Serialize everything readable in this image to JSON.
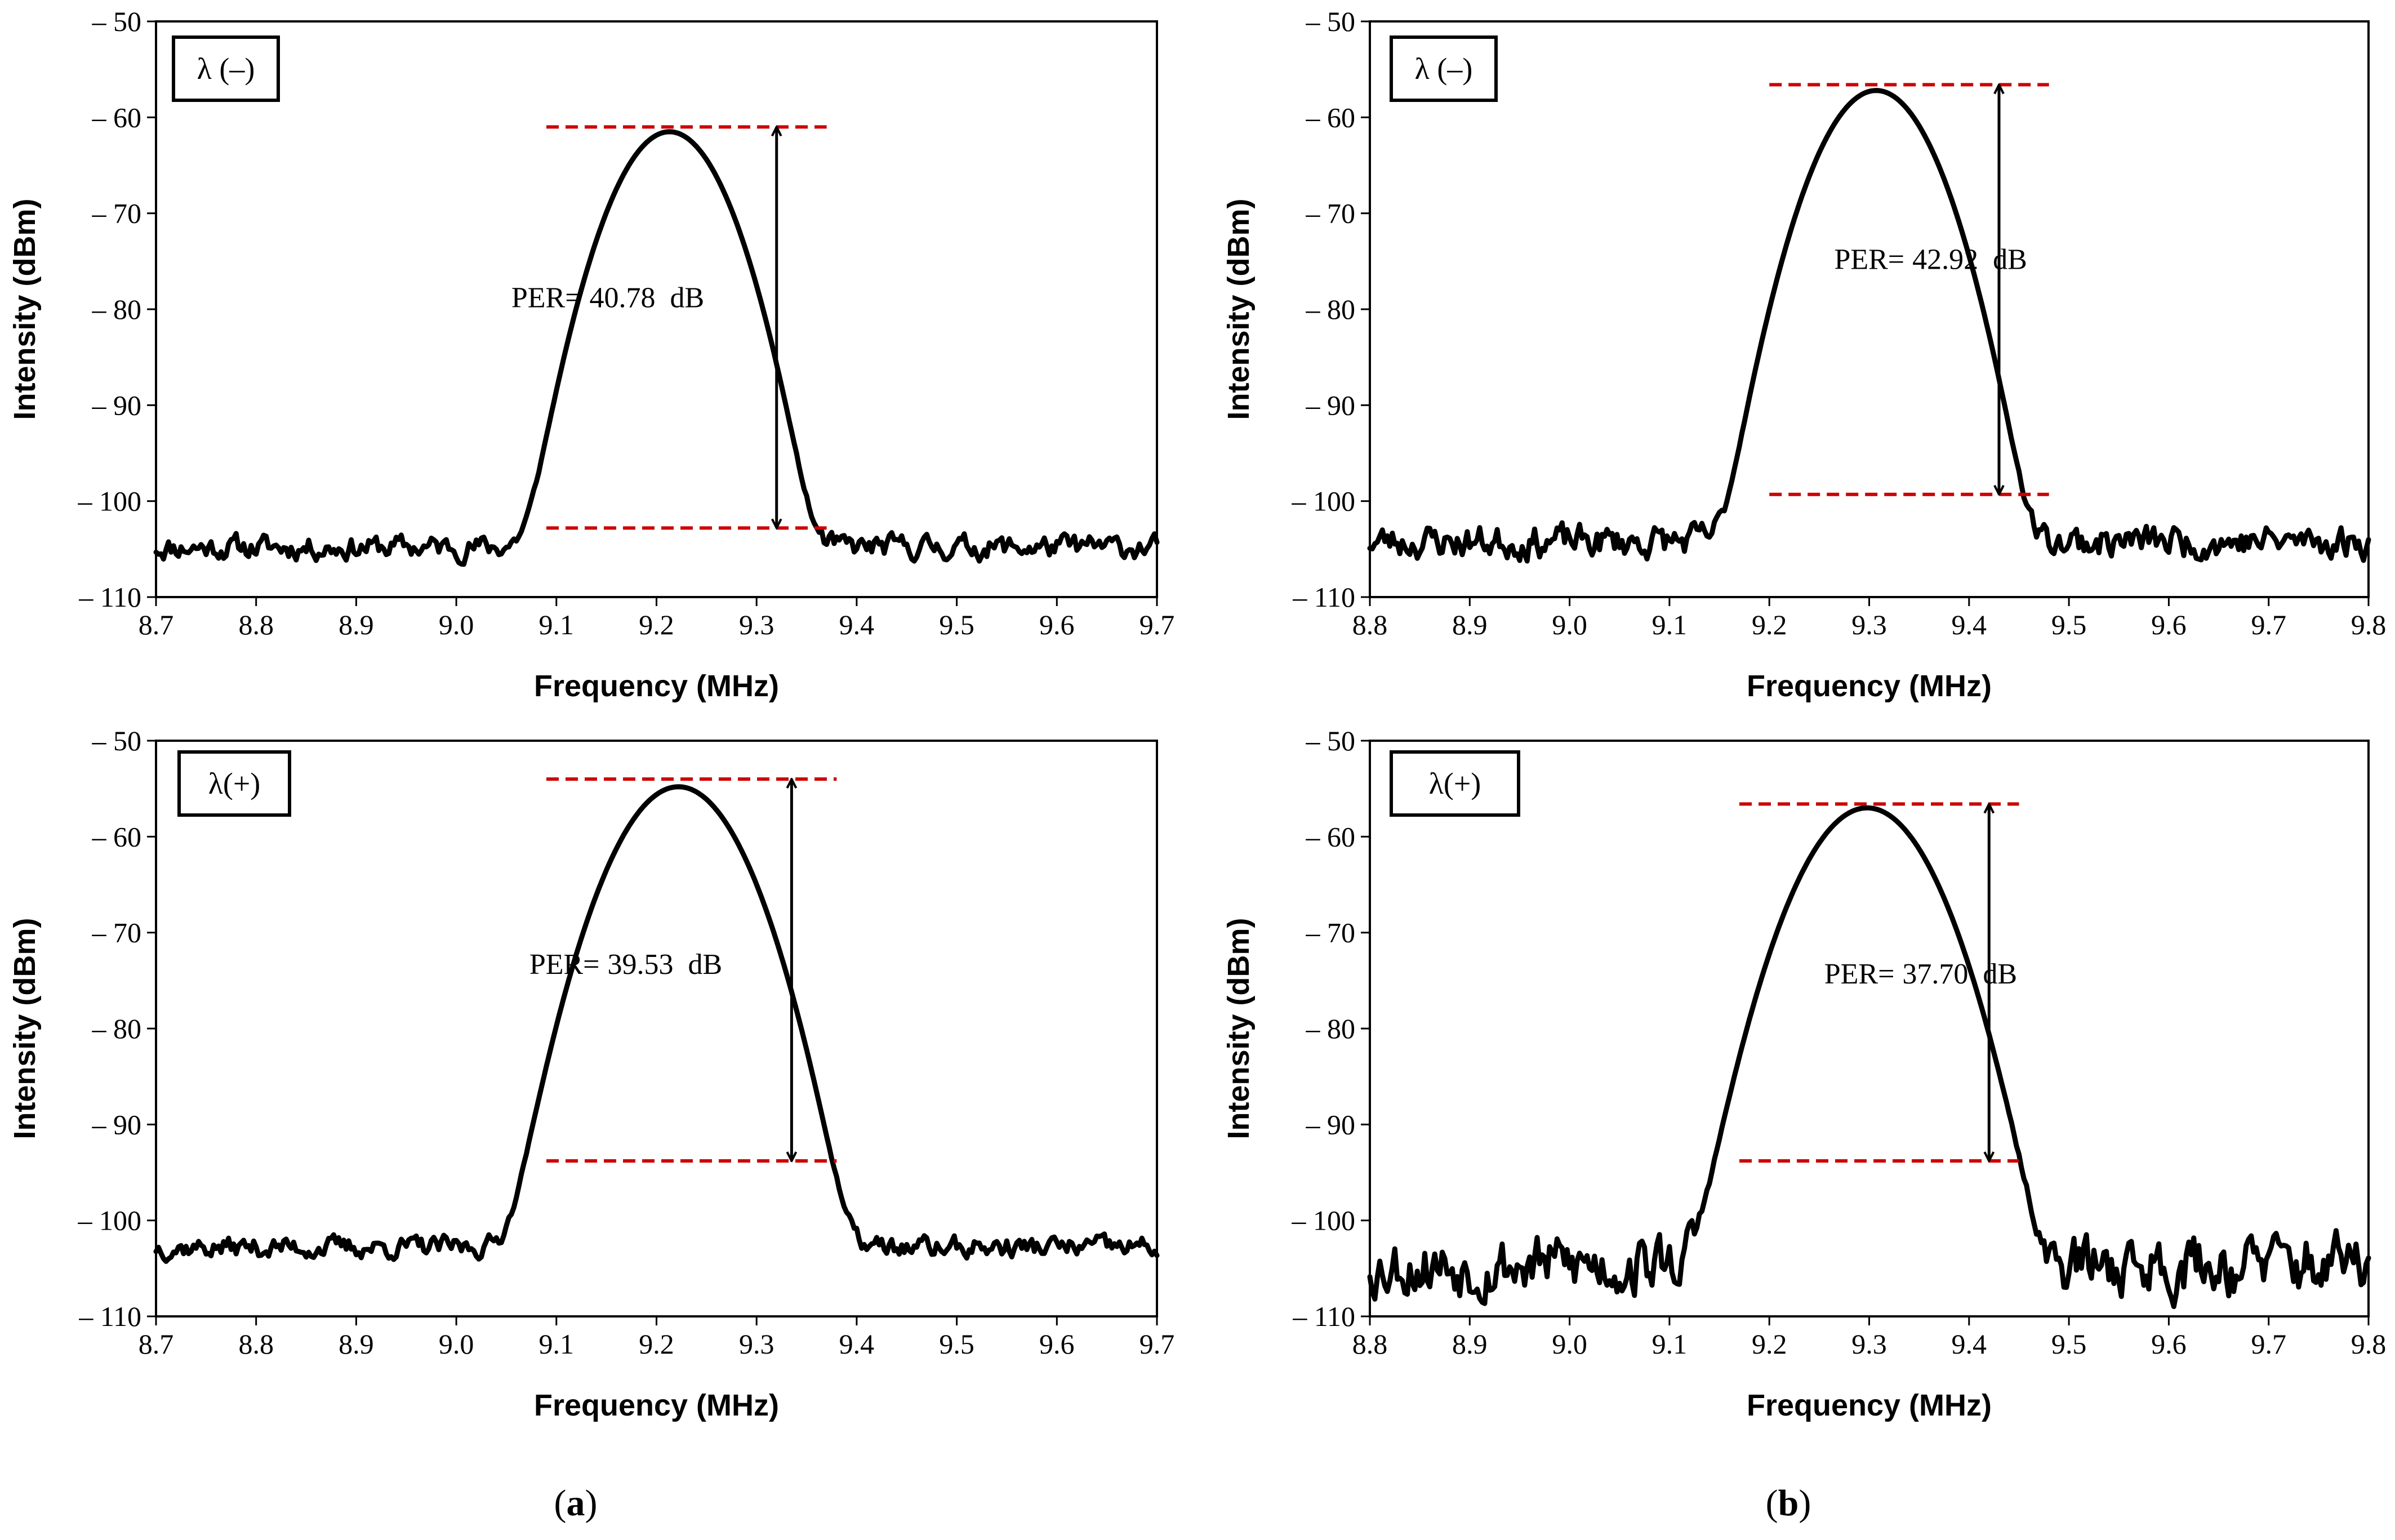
{
  "figure": {
    "captions": [
      {
        "open": "(",
        "letter": "a",
        "close": ")"
      },
      {
        "open": "(",
        "letter": "b",
        "close": ")"
      }
    ]
  },
  "colors": {
    "trace": "#000000",
    "reference_line": "#cc0000",
    "arrow": "#000000"
  },
  "chart_data": [
    {
      "type": "line",
      "panel": "top-left",
      "legend": "λ (–)",
      "xlabel": "Frequency (MHz)",
      "ylabel": "Intensity (dBm)",
      "xlim": [
        8.7,
        9.7
      ],
      "ylim": [
        -110,
        -50
      ],
      "xticks": [
        "8.7",
        "8.8",
        "8.9",
        "9.0",
        "9.1",
        "9.2",
        "9.3",
        "9.4",
        "9.5",
        "9.6",
        "9.7"
      ],
      "yticks": [
        "– 50",
        "– 60",
        "– 70",
        "– 80",
        "– 90",
        "– 100",
        "– 110"
      ],
      "peak": {
        "center": 9.213,
        "level": -61.5,
        "width": 0.032
      },
      "noise_floor": -104.8,
      "noise_amplitude": 1.0,
      "seed": 11,
      "reference_lines": {
        "top": -61,
        "bottom": -102.8,
        "x_range": [
          9.09,
          9.37
        ]
      },
      "arrow": {
        "x": 9.32,
        "from": -61,
        "to": -102.8
      },
      "annotation": {
        "label": "PER=",
        "value": "40.78",
        "unit": "dB",
        "x": 9.055,
        "y": -79.8
      }
    },
    {
      "type": "line",
      "panel": "top-right",
      "legend": "λ (–)",
      "xlabel": "Frequency (MHz)",
      "ylabel": "Intensity (dBm)",
      "xlim": [
        8.8,
        9.8
      ],
      "ylim": [
        -110,
        -50
      ],
      "xticks": [
        "8.8",
        "8.9",
        "9.0",
        "9.1",
        "9.2",
        "9.3",
        "9.4",
        "9.5",
        "9.6",
        "9.7",
        "9.8"
      ],
      "yticks": [
        "– 50",
        "– 60",
        "– 70",
        "– 80",
        "– 90",
        "– 100",
        "– 110"
      ],
      "peak": {
        "center": 9.307,
        "level": -57.2,
        "width": 0.033
      },
      "noise_floor": -104.2,
      "noise_amplitude": 1.4,
      "seed": 23,
      "reference_lines": {
        "top": -56.6,
        "bottom": -99.3,
        "x_range": [
          9.2,
          9.48
        ]
      },
      "arrow": {
        "x": 9.43,
        "from": -56.6,
        "to": -99.3
      },
      "annotation": {
        "label": "PER=",
        "value": "42.92",
        "unit": "dB",
        "x": 9.265,
        "y": -75.8
      }
    },
    {
      "type": "line",
      "panel": "bottom-left",
      "legend": "λ(+)",
      "xlabel": "Frequency (MHz)",
      "ylabel": "Intensity (dBm)",
      "xlim": [
        8.7,
        9.7
      ],
      "ylim": [
        -110,
        -50
      ],
      "xticks": [
        "8.7",
        "8.8",
        "8.9",
        "9.0",
        "9.1",
        "9.2",
        "9.3",
        "9.4",
        "9.5",
        "9.6",
        "9.7"
      ],
      "yticks": [
        "– 50",
        "– 60",
        "– 70",
        "– 80",
        "– 90",
        "– 100",
        "– 110"
      ],
      "peak": {
        "center": 9.222,
        "level": -54.8,
        "width": 0.036
      },
      "noise_floor": -102.8,
      "noise_amplitude": 0.9,
      "seed": 37,
      "reference_lines": {
        "top": -54,
        "bottom": -93.8,
        "x_range": [
          9.09,
          9.38
        ]
      },
      "arrow": {
        "x": 9.335,
        "from": -54,
        "to": -93.8
      },
      "annotation": {
        "label": "PER=",
        "value": "39.53",
        "unit": "dB",
        "x": 9.073,
        "y": -74.3
      }
    },
    {
      "type": "line",
      "panel": "bottom-right",
      "legend": "λ(+)",
      "xlabel": "Frequency (MHz)",
      "ylabel": "Intensity (dBm)",
      "xlim": [
        8.8,
        9.8
      ],
      "ylim": [
        -110,
        -50
      ],
      "xticks": [
        "8.8",
        "8.9",
        "9.0",
        "9.1",
        "9.2",
        "9.3",
        "9.4",
        "9.5",
        "9.6",
        "9.7",
        "9.8"
      ],
      "yticks": [
        "– 50",
        "– 60",
        "– 70",
        "– 80",
        "– 90",
        "– 100",
        "– 110"
      ],
      "peak": {
        "center": 9.298,
        "level": -57.0,
        "width": 0.037
      },
      "noise_floor": -104.6,
      "noise_amplitude": 2.6,
      "seed": 53,
      "reference_lines": {
        "top": -56.6,
        "bottom": -93.8,
        "x_range": [
          9.17,
          9.45
        ]
      },
      "arrow": {
        "x": 9.42,
        "from": -56.6,
        "to": -93.8
      },
      "annotation": {
        "label": "PER=",
        "value": "37.70",
        "unit": "dB",
        "x": 9.255,
        "y": -75.3
      }
    }
  ]
}
